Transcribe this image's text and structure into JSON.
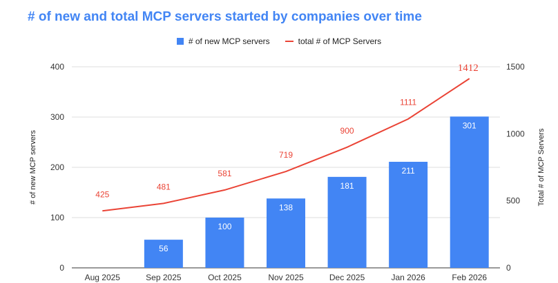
{
  "chart_data": {
    "type": "bar+line",
    "title": "# of new and total MCP servers started by companies over time",
    "categories": [
      "Aug 2025",
      "Sep 2025",
      "Oct 2025",
      "Nov 2025",
      "Dec 2025",
      "Jan 2026",
      "Feb 2026"
    ],
    "series": [
      {
        "name": "# of new MCP servers",
        "type": "bar",
        "axis": "left",
        "values": [
          null,
          56,
          100,
          138,
          181,
          211,
          301
        ],
        "labels": [
          "",
          "56",
          "100",
          "138",
          "181",
          "211",
          "301"
        ],
        "color": "#4285f4"
      },
      {
        "name": "total # of MCP Servers",
        "type": "line",
        "axis": "right",
        "values": [
          425,
          481,
          581,
          719,
          900,
          1111,
          1412
        ],
        "labels": [
          "425",
          "481",
          "581",
          "719",
          "900",
          "1111",
          "1412"
        ],
        "color": "#ea4335"
      }
    ],
    "ylabel_left": "# of new MCP servers",
    "ylabel_right": "Total # of MCP Servers",
    "ylim_left": [
      0,
      400
    ],
    "yticks_left": [
      "0",
      "100",
      "200",
      "300",
      "400"
    ],
    "ylim_right": [
      0,
      1500
    ],
    "yticks_right": [
      "0",
      "500",
      "1000",
      "1500"
    ],
    "grid": true,
    "legend_position": "top-center"
  }
}
